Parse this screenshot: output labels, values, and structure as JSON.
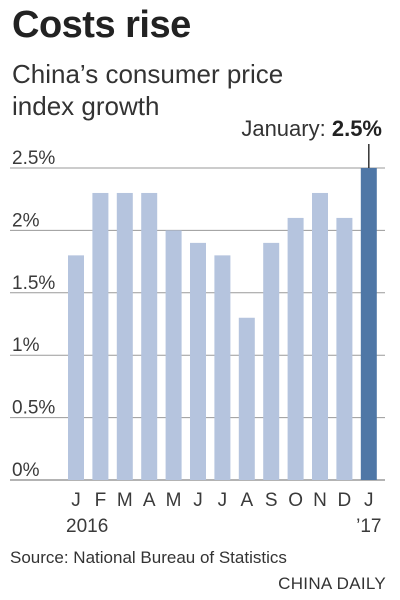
{
  "header": {
    "title": "Costs rise",
    "subtitle": "China’s consumer price index growth"
  },
  "callout": {
    "label": "January:",
    "value": "2.5%"
  },
  "footer": {
    "source": "Source: National Bureau of Statistics",
    "credit": "CHINA DAILY"
  },
  "colors": {
    "bar": "#b5c4de",
    "highlight": "#4f77a6",
    "grid": "#9a9a9a",
    "text": "#3a3a3a"
  },
  "chart_data": {
    "type": "bar",
    "title": "Costs rise",
    "subtitle": "China’s consumer price index growth",
    "categories": [
      "J",
      "F",
      "M",
      "A",
      "M",
      "J",
      "J",
      "A",
      "S",
      "O",
      "N",
      "D",
      "J"
    ],
    "year_labels": [
      "2016",
      "’17"
    ],
    "values": [
      1.8,
      2.3,
      2.3,
      2.3,
      2.0,
      1.9,
      1.8,
      1.3,
      1.9,
      2.1,
      2.3,
      2.1,
      2.5
    ],
    "value_unit": "%",
    "highlight_index": 12,
    "ylim": [
      0,
      2.5
    ],
    "yticks": [
      0,
      0.5,
      1,
      1.5,
      2,
      2.5
    ],
    "ytick_labels": [
      "0%",
      "0.5%",
      "1%",
      "1.5%",
      "2%",
      "2.5%"
    ],
    "grid": true
  }
}
